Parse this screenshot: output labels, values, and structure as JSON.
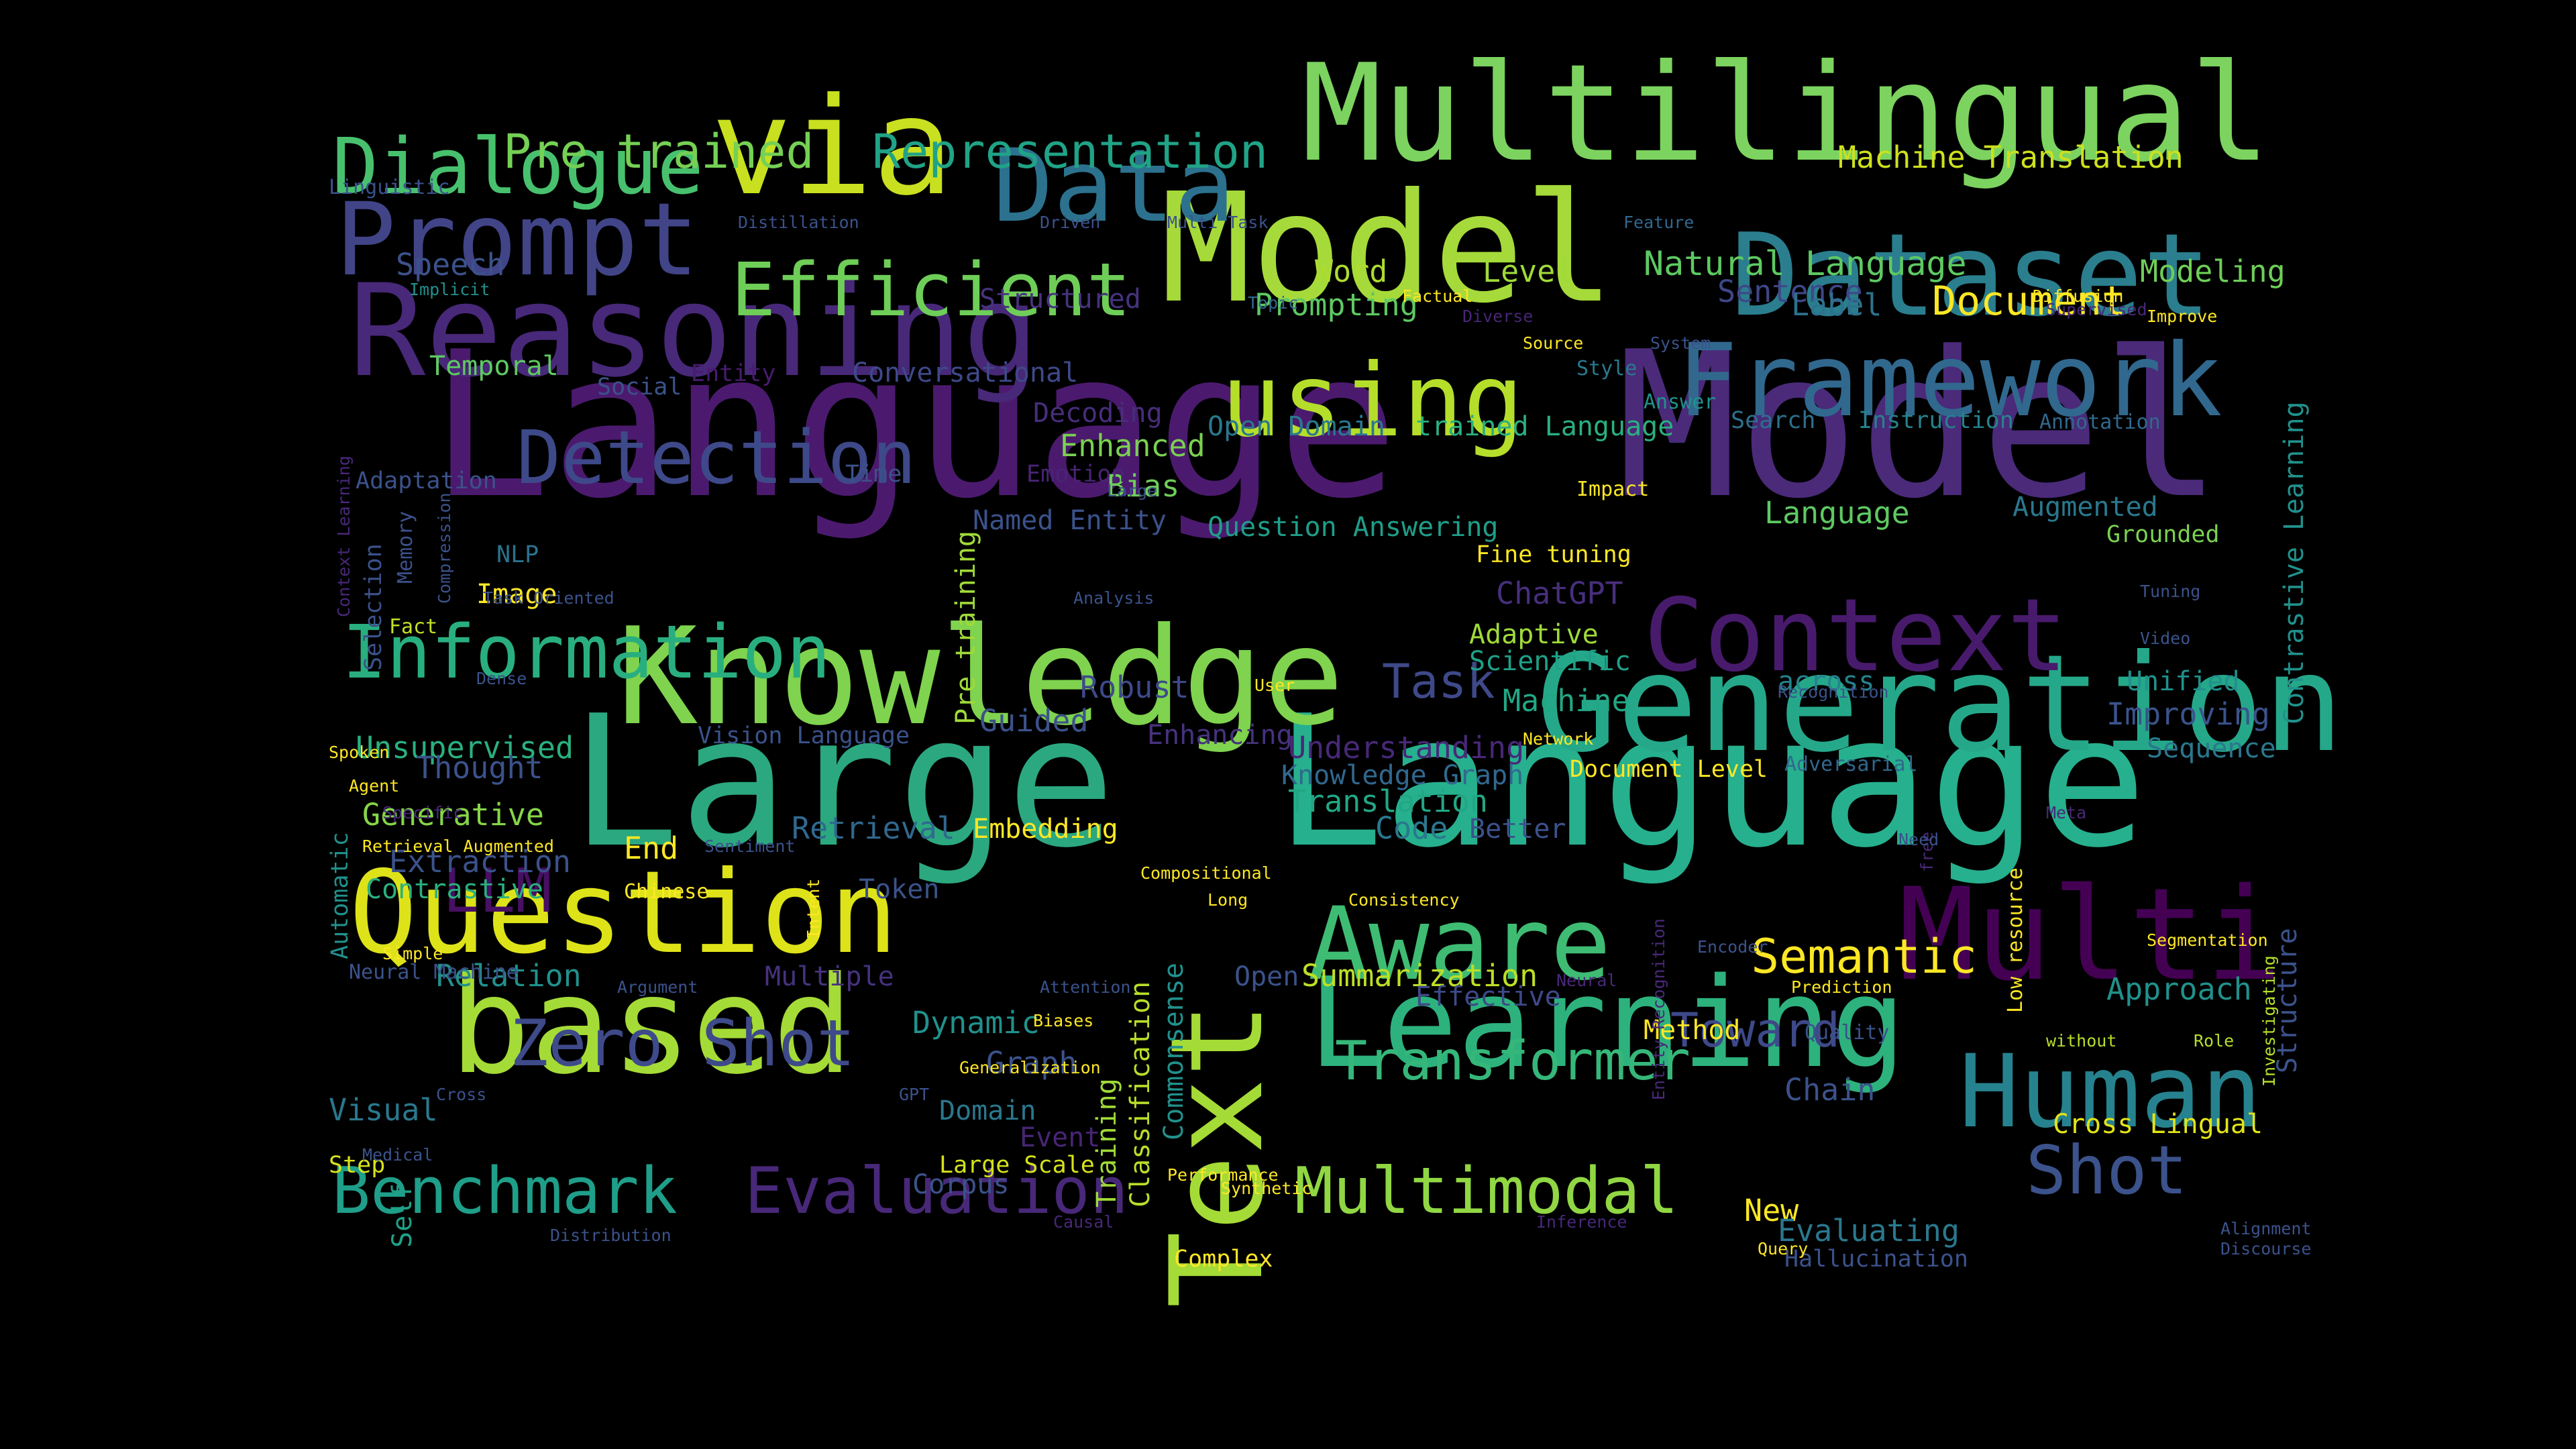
{
  "background": "#000000",
  "palette": [
    "#440154",
    "#482878",
    "#3e4989",
    "#31688e",
    "#26828e",
    "#1f9e89",
    "#35b779",
    "#6ece58",
    "#b5de2b",
    "#fde725"
  ],
  "words": [
    {
      "text": "Language",
      "color": "#4b1a6e"
    },
    {
      "text": "Model",
      "color": "#4a2a79"
    },
    {
      "text": "Large",
      "color": "#2ba87f"
    },
    {
      "text": "Language",
      "color": "#26b08e"
    },
    {
      "text": "Multilingual",
      "color": "#7cd35f"
    },
    {
      "text": "Model",
      "color": "#a6da3a"
    },
    {
      "text": "via",
      "color": "#c8e020"
    },
    {
      "text": "Knowledge",
      "color": "#7fd34e"
    },
    {
      "text": "Generation",
      "color": "#25a88a"
    },
    {
      "text": "Reasoning",
      "color": "#482878"
    },
    {
      "text": "Dataset",
      "color": "#2a7e8e"
    },
    {
      "text": "Framework",
      "color": "#31688e"
    },
    {
      "text": "Prompt",
      "color": "#414487"
    },
    {
      "text": "Data",
      "color": "#2c728e"
    },
    {
      "text": "using",
      "color": "#b5de2b"
    },
    {
      "text": "Text",
      "color": "#a5db36"
    },
    {
      "text": "Learning",
      "color": "#2db27d"
    },
    {
      "text": "based",
      "color": "#a5db36"
    },
    {
      "text": "Question",
      "color": "#dde318"
    },
    {
      "text": "Multi",
      "color": "#440154"
    },
    {
      "text": "Human",
      "color": "#26828e"
    },
    {
      "text": "Aware",
      "color": "#3fbc73"
    },
    {
      "text": "Context",
      "color": "#481a6c"
    },
    {
      "text": "Information",
      "color": "#29af7f"
    },
    {
      "text": "Detection",
      "color": "#3e4989"
    },
    {
      "text": "Dialogue",
      "color": "#48c16e"
    },
    {
      "text": "Efficient",
      "color": "#6ece58"
    },
    {
      "text": "Benchmark",
      "color": "#1f9e89"
    },
    {
      "text": "Evaluation",
      "color": "#482878"
    },
    {
      "text": "Multimodal",
      "color": "#90d743"
    },
    {
      "text": "Zero Shot",
      "color": "#3e4a89"
    },
    {
      "text": "Transformer",
      "color": "#35b779"
    },
    {
      "text": "Shot",
      "color": "#3b528b"
    },
    {
      "text": "Pre trained",
      "color": "#75d054"
    },
    {
      "text": "Representation",
      "color": "#20a386"
    },
    {
      "text": "Semantic",
      "color": "#fde725"
    },
    {
      "text": "LLM",
      "color": "#471063"
    },
    {
      "text": "Task",
      "color": "#3e4989"
    },
    {
      "text": "Toward",
      "color": "#3e4989"
    },
    {
      "text": "Document",
      "color": "#fde725"
    },
    {
      "text": "Machine Translation",
      "color": "#cde11d"
    },
    {
      "text": "Natural Language",
      "color": "#5ec962"
    },
    {
      "text": "Modeling",
      "color": "#6ece58"
    },
    {
      "text": "Word",
      "color": "#addc30"
    },
    {
      "text": "Level",
      "color": "#a0da39"
    },
    {
      "text": "Sentence",
      "color": "#3f4788"
    },
    {
      "text": "Prompting",
      "color": "#5ec962"
    },
    {
      "text": "Label",
      "color": "#2c728e"
    },
    {
      "text": "Structured",
      "color": "#46337e"
    },
    {
      "text": "Speech",
      "color": "#3b528b"
    },
    {
      "text": "Temporal",
      "color": "#5ec962"
    },
    {
      "text": "Conversational",
      "color": "#3e4989"
    },
    {
      "text": "Entity",
      "color": "#481c6e"
    },
    {
      "text": "Social",
      "color": "#3b528b"
    },
    {
      "text": "Decoding",
      "color": "#472d7b"
    },
    {
      "text": "Open Domain",
      "color": "#2a788e"
    },
    {
      "text": "trained Language",
      "color": "#2ab07f"
    },
    {
      "text": "Search",
      "color": "#2d708e"
    },
    {
      "text": "Instruction",
      "color": "#26828e"
    },
    {
      "text": "Annotation",
      "color": "#31688e"
    },
    {
      "text": "Enhanced",
      "color": "#7ad151"
    },
    {
      "text": "Bias",
      "color": "#6ece58"
    },
    {
      "text": "Emotion",
      "color": "#482475"
    },
    {
      "text": "Time",
      "color": "#3b528b"
    },
    {
      "text": "Adaptation",
      "color": "#3b528b"
    },
    {
      "text": "Named Entity",
      "color": "#3b528b"
    },
    {
      "text": "Question Answering",
      "color": "#1f9e89"
    },
    {
      "text": "Language",
      "color": "#5ec962"
    },
    {
      "text": "Augmented",
      "color": "#2a788e"
    },
    {
      "text": "Grounded",
      "color": "#7ad151"
    },
    {
      "text": "Fine tuning",
      "color": "#fde725"
    },
    {
      "text": "Impact",
      "color": "#fde725"
    },
    {
      "text": "NLP",
      "color": "#2c728e"
    },
    {
      "text": "Image",
      "color": "#fde725"
    },
    {
      "text": "Fact",
      "color": "#c2df23"
    },
    {
      "text": "ChatGPT",
      "color": "#472f7d"
    },
    {
      "text": "Adaptive",
      "color": "#9fda3a"
    },
    {
      "text": "Scientific",
      "color": "#1fa188"
    },
    {
      "text": "Robust",
      "color": "#3e4989"
    },
    {
      "text": "Machine",
      "color": "#22a785"
    },
    {
      "text": "across",
      "color": "#26828e"
    },
    {
      "text": "Unified",
      "color": "#21918c"
    },
    {
      "text": "Improving",
      "color": "#3b528b"
    },
    {
      "text": "Sequence",
      "color": "#2a788e"
    },
    {
      "text": "Guided",
      "color": "#3b528b"
    },
    {
      "text": "Enhancing",
      "color": "#46327e"
    },
    {
      "text": "Understanding",
      "color": "#482878"
    },
    {
      "text": "Unsupervised",
      "color": "#2ab07f"
    },
    {
      "text": "Vision Language",
      "color": "#3b528b"
    },
    {
      "text": "Thought",
      "color": "#3b528b"
    },
    {
      "text": "Knowledge Graph",
      "color": "#31688e"
    },
    {
      "text": "Document Level",
      "color": "#fde725"
    },
    {
      "text": "Adversarial",
      "color": "#31688e"
    },
    {
      "text": "Generative",
      "color": "#86d549"
    },
    {
      "text": "Retrieval",
      "color": "#31688e"
    },
    {
      "text": "Embedding",
      "color": "#fde725"
    },
    {
      "text": "Translation",
      "color": "#22a785"
    },
    {
      "text": "Code",
      "color": "#2a788e"
    },
    {
      "text": "Better",
      "color": "#3b528b"
    },
    {
      "text": "Extraction",
      "color": "#3b528b"
    },
    {
      "text": "End",
      "color": "#fde725"
    },
    {
      "text": "Contrastive",
      "color": "#2ab07f"
    },
    {
      "text": "Chinese",
      "color": "#fde725"
    },
    {
      "text": "Token",
      "color": "#3b528b"
    },
    {
      "text": "Relation",
      "color": "#21918c"
    },
    {
      "text": "Multiple",
      "color": "#46327e"
    },
    {
      "text": "Summarization",
      "color": "#bddf26"
    },
    {
      "text": "Effective",
      "color": "#3e4989"
    },
    {
      "text": "Approach",
      "color": "#21918c"
    },
    {
      "text": "Dynamic",
      "color": "#21918c"
    },
    {
      "text": "Graph",
      "color": "#3b528b"
    },
    {
      "text": "Method",
      "color": "#fde725"
    },
    {
      "text": "Quality",
      "color": "#3b528b"
    },
    {
      "text": "Chain",
      "color": "#3b528b"
    },
    {
      "text": "Visual",
      "color": "#2a788e"
    },
    {
      "text": "Domain",
      "color": "#2a788e"
    },
    {
      "text": "Event",
      "color": "#482575"
    },
    {
      "text": "Large Scale",
      "color": "#d5e21a"
    },
    {
      "text": "Corpus",
      "color": "#3b528b"
    },
    {
      "text": "Step",
      "color": "#d8e219"
    },
    {
      "text": "Cross Lingual",
      "color": "#e2e418"
    },
    {
      "text": "New",
      "color": "#fde725"
    },
    {
      "text": "Evaluating",
      "color": "#2a788e"
    },
    {
      "text": "Hallucination",
      "color": "#3b528b"
    },
    {
      "text": "Complex",
      "color": "#fde725"
    },
    {
      "text": "Pre training",
      "color": "#a0da39"
    },
    {
      "text": "Training",
      "color": "#a0da39"
    },
    {
      "text": "Classification",
      "color": "#b8de29"
    },
    {
      "text": "Commonsense",
      "color": "#21918c"
    },
    {
      "text": "Contrastive Learning",
      "color": "#21918c"
    },
    {
      "text": "Structure",
      "color": "#3b528b"
    },
    {
      "text": "Selection",
      "color": "#3b528b"
    },
    {
      "text": "Self",
      "color": "#1fa188"
    },
    {
      "text": "Automatic",
      "color": "#21918c"
    },
    {
      "text": "Open",
      "color": "#3b528b"
    },
    {
      "text": "Neural Machine",
      "color": "#3b528b"
    },
    {
      "text": "Linguistic",
      "color": "#3b528b"
    },
    {
      "text": "Distillation",
      "color": "#3b528b"
    },
    {
      "text": "Driven",
      "color": "#3b528b"
    },
    {
      "text": "Multi Task",
      "color": "#3b528b"
    },
    {
      "text": "Feature",
      "color": "#31688e"
    },
    {
      "text": "Implicit",
      "color": "#21918c"
    },
    {
      "text": "Topic",
      "color": "#31688e"
    },
    {
      "text": "Factual",
      "color": "#fde725"
    },
    {
      "text": "Diverse",
      "color": "#482575"
    },
    {
      "text": "Source",
      "color": "#fde725"
    },
    {
      "text": "System",
      "color": "#3b528b"
    },
    {
      "text": "Diffusion",
      "color": "#fde725"
    },
    {
      "text": "Supervised",
      "color": "#482878"
    },
    {
      "text": "Improve",
      "color": "#fde725"
    },
    {
      "text": "Style",
      "color": "#2a788e"
    },
    {
      "text": "Answer",
      "color": "#21918c"
    },
    {
      "text": "Large",
      "color": "#3b528b"
    },
    {
      "text": "Memory",
      "color": "#3b528b"
    },
    {
      "text": "Compression",
      "color": "#3b528b"
    },
    {
      "text": "Context Learning",
      "color": "#482878"
    },
    {
      "text": "Task Oriented",
      "color": "#3b528b"
    },
    {
      "text": "Analysis",
      "color": "#3b528b"
    },
    {
      "text": "Tuning",
      "color": "#3b528b"
    },
    {
      "text": "Video",
      "color": "#3b528b"
    },
    {
      "text": "Dense",
      "color": "#3b528b"
    },
    {
      "text": "User",
      "color": "#fde725"
    },
    {
      "text": "Recognition",
      "color": "#3b528b"
    },
    {
      "text": "Network",
      "color": "#fde725"
    },
    {
      "text": "Spoken",
      "color": "#fde725"
    },
    {
      "text": "Agent",
      "color": "#fde725"
    },
    {
      "text": "Specific",
      "color": "#482878"
    },
    {
      "text": "Retrieval Augmented",
      "color": "#fde725"
    },
    {
      "text": "Sentiment",
      "color": "#3b528b"
    },
    {
      "text": "Intent",
      "color": "#fde725"
    },
    {
      "text": "Compositional",
      "color": "#fde725"
    },
    {
      "text": "Long",
      "color": "#fde725"
    },
    {
      "text": "Consistency",
      "color": "#fde725"
    },
    {
      "text": "free",
      "color": "#482878"
    },
    {
      "text": "Low resource",
      "color": "#fde725"
    },
    {
      "text": "Meta",
      "color": "#482878"
    },
    {
      "text": "Need",
      "color": "#3b528b"
    },
    {
      "text": "Segmentation",
      "color": "#fde725"
    },
    {
      "text": "Investigating",
      "color": "#b5de2b"
    },
    {
      "text": "Entity Recognition",
      "color": "#482878"
    },
    {
      "text": "Encoder",
      "color": "#3b528b"
    },
    {
      "text": "Neural",
      "color": "#482878"
    },
    {
      "text": "Prediction",
      "color": "#fde725"
    },
    {
      "text": "without",
      "color": "#b5de2b"
    },
    {
      "text": "Role",
      "color": "#b5de2b"
    },
    {
      "text": "Simple",
      "color": "#fde725"
    },
    {
      "text": "Argument",
      "color": "#3b528b"
    },
    {
      "text": "Attention",
      "color": "#3b528b"
    },
    {
      "text": "Biases",
      "color": "#fde725"
    },
    {
      "text": "Generalization",
      "color": "#fde725"
    },
    {
      "text": "GPT",
      "color": "#3b528b"
    },
    {
      "text": "Cross",
      "color": "#3b528b"
    },
    {
      "text": "Medical",
      "color": "#3b528b"
    },
    {
      "text": "Performance",
      "color": "#fde725"
    },
    {
      "text": "Synthetic",
      "color": "#fde725"
    },
    {
      "text": "Causal",
      "color": "#482878"
    },
    {
      "text": "Inference",
      "color": "#482878"
    },
    {
      "text": "Query",
      "color": "#fde725"
    },
    {
      "text": "Distribution",
      "color": "#3b528b"
    },
    {
      "text": "Alignment",
      "color": "#3b528b"
    },
    {
      "text": "Discourse",
      "color": "#3b528b"
    }
  ]
}
